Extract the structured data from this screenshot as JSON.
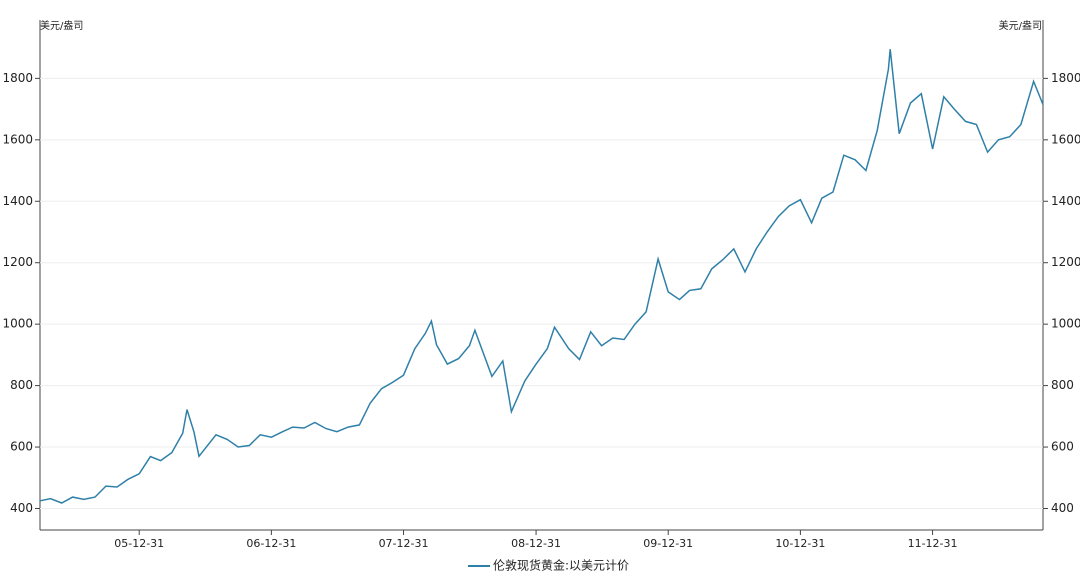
{
  "chart_data": {
    "type": "line",
    "y_label": "美元/盎司",
    "y2_label": "美元/盎司",
    "x": [
      "05-04-01",
      "05-04-30",
      "05-05-31",
      "05-06-30",
      "05-07-31",
      "05-08-31",
      "05-09-30",
      "05-10-31",
      "05-11-30",
      "05-12-31",
      "06-01-31",
      "06-02-28",
      "06-03-31",
      "06-04-30",
      "06-05-12",
      "06-05-31",
      "06-06-14",
      "06-07-31",
      "06-08-31",
      "06-09-30",
      "06-10-31",
      "06-11-30",
      "06-12-31",
      "07-01-31",
      "07-02-28",
      "07-03-31",
      "07-04-30",
      "07-05-31",
      "07-06-30",
      "07-07-31",
      "07-08-31",
      "07-09-30",
      "07-10-31",
      "07-11-30",
      "07-12-31",
      "08-01-31",
      "08-02-29",
      "08-03-17",
      "08-03-31",
      "08-04-30",
      "08-05-31",
      "08-06-30",
      "08-07-15",
      "08-08-31",
      "08-09-30",
      "08-10-24",
      "08-11-30",
      "08-12-31",
      "09-01-31",
      "09-02-20",
      "09-03-31",
      "09-04-30",
      "09-05-31",
      "09-06-30",
      "09-07-31",
      "09-08-31",
      "09-09-30",
      "09-10-31",
      "09-12-03",
      "09-12-31",
      "10-01-31",
      "10-02-28",
      "10-03-31",
      "10-04-30",
      "10-05-31",
      "10-06-30",
      "10-07-31",
      "10-08-31",
      "10-09-30",
      "10-10-31",
      "10-11-30",
      "10-12-31",
      "11-01-31",
      "11-02-28",
      "11-03-31",
      "11-04-30",
      "11-05-31",
      "11-06-30",
      "11-07-31",
      "11-08-31",
      "11-09-05",
      "11-09-30",
      "11-10-31",
      "11-11-30",
      "11-12-31",
      "12-01-31",
      "12-02-29",
      "12-03-31",
      "12-04-30",
      "12-05-31",
      "12-06-30",
      "12-07-31",
      "12-08-31",
      "12-09-30",
      "12-10-05",
      "12-10-31"
    ],
    "series": [
      {
        "name": "伦敦现货黄金:以美元计价",
        "color": "#2f80a8",
        "values": [
          425,
          432,
          418,
          437,
          430,
          437,
          473,
          470,
          495,
          513,
          569,
          556,
          582,
          645,
          722,
          650,
          570,
          640,
          625,
          600,
          605,
          640,
          632,
          650,
          665,
          662,
          680,
          660,
          650,
          665,
          672,
          743,
          790,
          810,
          834,
          920,
          970,
          1010,
          933,
          870,
          888,
          930,
          980,
          830,
          880,
          715,
          815,
          870,
          920,
          990,
          920,
          885,
          975,
          930,
          955,
          950,
          1000,
          1040,
          1212,
          1105,
          1080,
          1110,
          1115,
          1180,
          1210,
          1245,
          1170,
          1245,
          1300,
          1350,
          1385,
          1405,
          1330,
          1410,
          1430,
          1550,
          1535,
          1500,
          1630,
          1830,
          1895,
          1620,
          1720,
          1750,
          1570,
          1740,
          1700,
          1660,
          1650,
          1560,
          1600,
          1610,
          1650,
          1770,
          1790,
          1715
        ]
      }
    ],
    "xlim": [
      "05-04-01",
      "12-10-31"
    ],
    "xticks": [
      "05-12-31",
      "06-12-31",
      "07-12-31",
      "08-12-31",
      "09-12-31",
      "10-12-31",
      "11-12-31"
    ],
    "ylim": [
      330,
      1990
    ],
    "yticks": [
      400,
      600,
      800,
      1000,
      1200,
      1400,
      1600,
      1800
    ],
    "y2lim": [
      330,
      1990
    ],
    "y2ticks": [
      400,
      600,
      800,
      1000,
      1200,
      1400,
      1600,
      1800
    ],
    "grid": true,
    "legend": "bottom"
  }
}
